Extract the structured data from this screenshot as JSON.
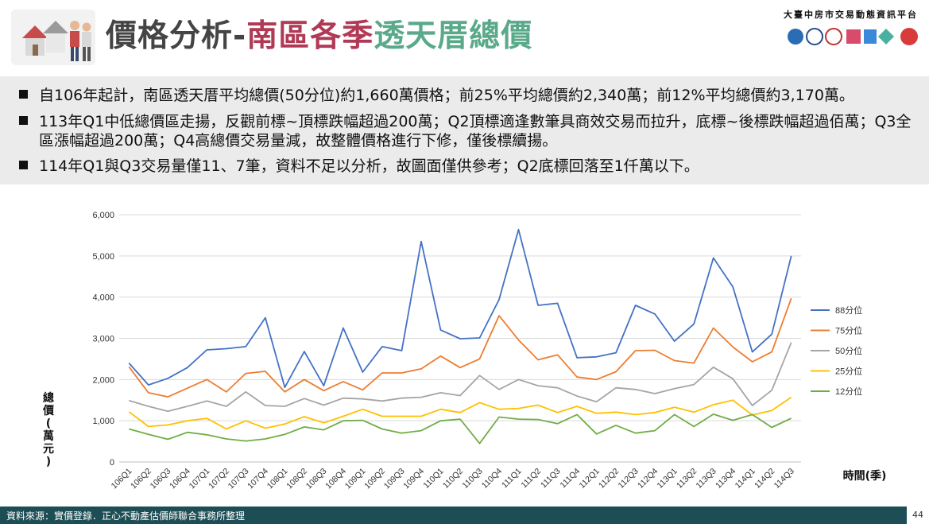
{
  "header": {
    "title_part1": "價格分析-",
    "title_part2": "南區各季",
    "title_part3": "透天厝總價",
    "org_name": "大臺中房市交易動態資訊平台",
    "colors": {
      "title_gray": "#444444",
      "title_red": "#b03a55",
      "title_green": "#5aa98a"
    }
  },
  "bullets": [
    "自106年起計，南區透天厝平均總價(50分位)約1,660萬價格；前25%平均總價約2,340萬；前12%平均總價約3,170萬。",
    "113年Q1中低總價區走揚，反觀前標~頂標跌幅超過200萬；Q2頂標適逢數筆具商效交易而拉升，底標~後標跌幅超過佰萬；Q3全區漲幅超過200萬；Q4高總價交易量減，故整體價格進行下修，僅後標續揚。",
    "114年Q1與Q3交易量僅11、7筆，資料不足以分析，故圖面僅供參考；Q2底標回落至1仟萬以下。"
  ],
  "chart_data": {
    "type": "line",
    "ylabel": "總價(萬元)",
    "xlabel": "時間(季)",
    "ylim": [
      0,
      6000
    ],
    "yticks": [
      "0",
      "1,000",
      "2,000",
      "3,000",
      "4,000",
      "5,000",
      "6,000"
    ],
    "grid": true,
    "legend_position": "right",
    "categories": [
      "106Q1",
      "106Q2",
      "106Q3",
      "106Q4",
      "107Q1",
      "107Q2",
      "107Q3",
      "107Q4",
      "108Q1",
      "108Q2",
      "108Q3",
      "108Q4",
      "109Q1",
      "109Q2",
      "109Q3",
      "109Q4",
      "110Q1",
      "110Q2",
      "110Q3",
      "110Q4",
      "111Q1",
      "111Q2",
      "111Q3",
      "111Q4",
      "112Q1",
      "112Q2",
      "112Q3",
      "112Q4",
      "113Q1",
      "113Q2",
      "113Q3",
      "113Q4",
      "114Q1",
      "114Q2",
      "114Q3"
    ],
    "series": [
      {
        "name": "88分位",
        "color": "#4472c4",
        "values": [
          2400,
          1870,
          2030,
          2290,
          2720,
          2750,
          2800,
          3500,
          1810,
          2680,
          1850,
          3250,
          2180,
          2800,
          2700,
          5350,
          3200,
          2990,
          3010,
          3940,
          5640,
          3800,
          3850,
          2530,
          2550,
          2650,
          3800,
          3590,
          2930,
          3350,
          4950,
          4250,
          2670,
          3100,
          5000
        ]
      },
      {
        "name": "75分位",
        "color": "#ed7d31",
        "values": [
          2310,
          1680,
          1580,
          1790,
          2000,
          1700,
          2150,
          2200,
          1700,
          2000,
          1730,
          1950,
          1750,
          2160,
          2160,
          2260,
          2570,
          2290,
          2500,
          3550,
          2960,
          2480,
          2600,
          2060,
          2000,
          2190,
          2700,
          2710,
          2460,
          2400,
          3250,
          2790,
          2430,
          2670,
          3970
        ]
      },
      {
        "name": "50分位",
        "color": "#a5a5a5",
        "values": [
          1490,
          1350,
          1230,
          1350,
          1480,
          1350,
          1700,
          1370,
          1350,
          1540,
          1380,
          1550,
          1530,
          1480,
          1550,
          1570,
          1680,
          1610,
          2100,
          1760,
          2000,
          1850,
          1800,
          1600,
          1460,
          1800,
          1760,
          1660,
          1780,
          1880,
          2300,
          2020,
          1370,
          1740,
          2900
        ]
      },
      {
        "name": "25分位",
        "color": "#ffc000",
        "values": [
          1220,
          860,
          900,
          1000,
          1060,
          800,
          1000,
          820,
          920,
          1100,
          950,
          1110,
          1280,
          1110,
          1110,
          1110,
          1280,
          1200,
          1440,
          1280,
          1300,
          1380,
          1200,
          1350,
          1180,
          1210,
          1150,
          1200,
          1330,
          1210,
          1390,
          1500,
          1140,
          1250,
          1570
        ]
      },
      {
        "name": "12分位",
        "color": "#70ad47",
        "values": [
          800,
          670,
          550,
          720,
          660,
          560,
          510,
          560,
          670,
          850,
          780,
          1000,
          1010,
          800,
          700,
          760,
          1000,
          1040,
          450,
          1090,
          1040,
          1030,
          930,
          1150,
          680,
          890,
          700,
          760,
          1150,
          860,
          1160,
          1010,
          1150,
          840,
          1060
        ]
      }
    ]
  },
  "footer": {
    "source": "資料來源：實價登錄．正心不動產估價師聯合事務所整理",
    "page": "44"
  }
}
